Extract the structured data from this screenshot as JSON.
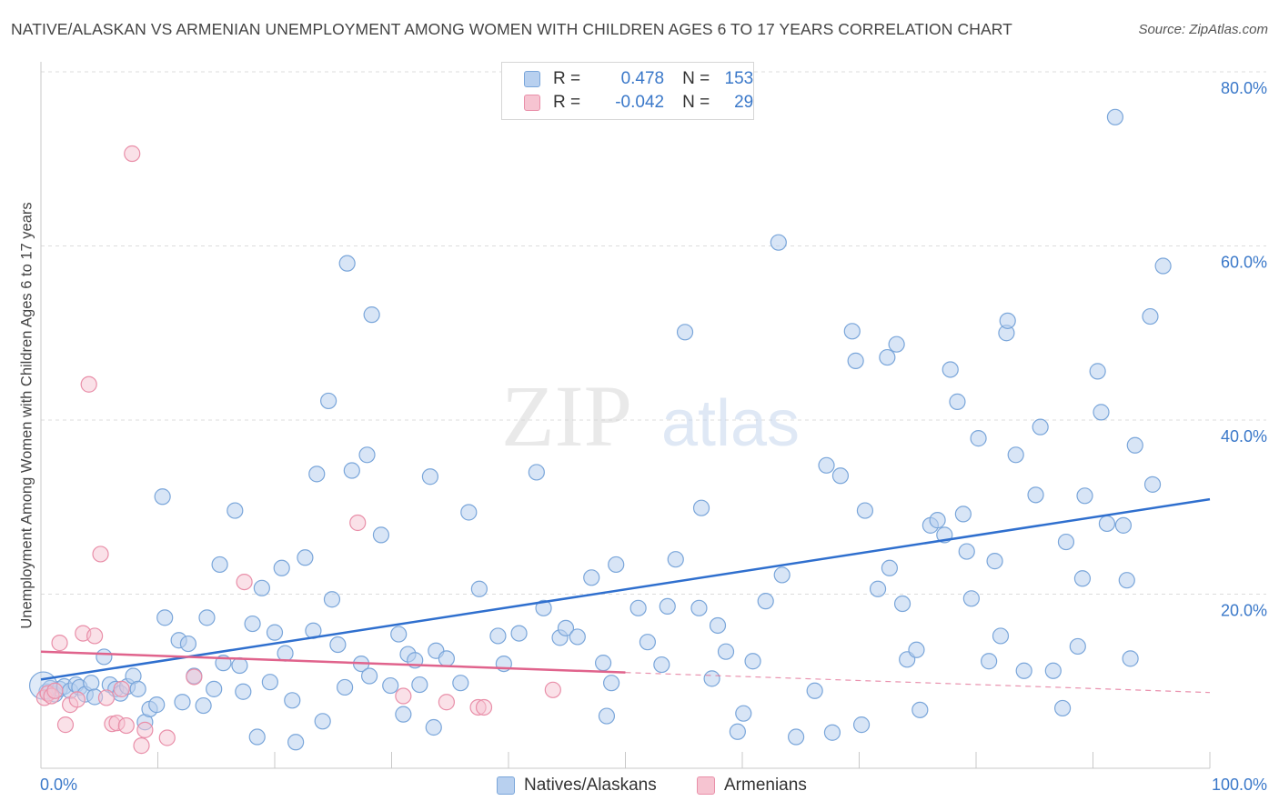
{
  "title": "NATIVE/ALASKAN VS ARMENIAN UNEMPLOYMENT AMONG WOMEN WITH CHILDREN AGES 6 TO 17 YEARS CORRELATION CHART",
  "source": "Source: ZipAtlas.com",
  "watermark": {
    "zip": "ZIP",
    "atlas": "atlas"
  },
  "legend": {
    "rows": [
      {
        "r_label": "R =",
        "r_value": "0.478",
        "n_label": "N =",
        "n_value": "153"
      },
      {
        "r_label": "R =",
        "r_value": "-0.042",
        "n_label": "N =",
        "n_value": "29"
      }
    ]
  },
  "colors": {
    "natives_fill": "#b8d0ef",
    "natives_stroke": "#7aa6da",
    "natives_line": "#2f6fce",
    "armenians_fill": "#f6c4d1",
    "armenians_stroke": "#e98fa9",
    "armenians_line": "#e0638c",
    "axis_text": "#3a78c9",
    "grid": "#dcdcdc"
  },
  "chart_data": {
    "type": "scatter",
    "title": "NATIVE/ALASKAN VS ARMENIAN UNEMPLOYMENT AMONG WOMEN WITH CHILDREN AGES 6 TO 17 YEARS CORRELATION CHART",
    "xlabel": "",
    "ylabel": "Unemployment Among Women with Children Ages 6 to 17 years",
    "xlim": [
      0,
      100
    ],
    "ylim": [
      0,
      80
    ],
    "x_tick_labels": [
      "0.0%",
      "100.0%"
    ],
    "y_ticks": [
      20,
      40,
      60,
      80
    ],
    "y_tick_labels": [
      "20.0%",
      "40.0%",
      "60.0%",
      "80.0%"
    ],
    "series": [
      {
        "name": "Natives/Alaskans",
        "r": 0.478,
        "n": 153,
        "trend": {
          "x": [
            0,
            100
          ],
          "y": [
            10.2,
            30.9
          ]
        },
        "points": [
          [
            0.5,
            8.8
          ],
          [
            0.8,
            9.2
          ],
          [
            1.2,
            8.5
          ],
          [
            1.6,
            9.1
          ],
          [
            2.0,
            9.4
          ],
          [
            2.5,
            8.9
          ],
          [
            3.0,
            9.6
          ],
          [
            3.3,
            9.3
          ],
          [
            3.8,
            8.5
          ],
          [
            4.3,
            9.8
          ],
          [
            4.6,
            8.2
          ],
          [
            5.4,
            12.8
          ],
          [
            5.9,
            9.6
          ],
          [
            6.4,
            9.1
          ],
          [
            6.8,
            8.6
          ],
          [
            7.4,
            9.4
          ],
          [
            7.9,
            10.6
          ],
          [
            8.3,
            9.1
          ],
          [
            8.9,
            5.3
          ],
          [
            9.3,
            6.8
          ],
          [
            9.9,
            7.3
          ],
          [
            10.4,
            31.2
          ],
          [
            10.6,
            17.3
          ],
          [
            11.8,
            14.7
          ],
          [
            12.1,
            7.6
          ],
          [
            12.6,
            14.3
          ],
          [
            13.1,
            10.6
          ],
          [
            13.9,
            7.2
          ],
          [
            14.2,
            17.3
          ],
          [
            14.8,
            9.1
          ],
          [
            15.3,
            23.4
          ],
          [
            15.6,
            12.1
          ],
          [
            16.6,
            29.6
          ],
          [
            17.0,
            11.8
          ],
          [
            17.3,
            8.8
          ],
          [
            18.1,
            16.6
          ],
          [
            18.5,
            3.6
          ],
          [
            18.9,
            20.7
          ],
          [
            19.6,
            9.9
          ],
          [
            20.0,
            15.6
          ],
          [
            20.6,
            23.0
          ],
          [
            20.9,
            13.2
          ],
          [
            21.5,
            7.8
          ],
          [
            21.8,
            3.0
          ],
          [
            22.6,
            24.2
          ],
          [
            23.3,
            15.8
          ],
          [
            23.6,
            33.8
          ],
          [
            24.1,
            5.4
          ],
          [
            24.6,
            42.2
          ],
          [
            24.9,
            19.4
          ],
          [
            25.4,
            14.2
          ],
          [
            26.0,
            9.3
          ],
          [
            26.2,
            58.0
          ],
          [
            26.6,
            34.2
          ],
          [
            27.4,
            12.0
          ],
          [
            27.9,
            36.0
          ],
          [
            28.1,
            10.6
          ],
          [
            28.3,
            52.1
          ],
          [
            29.1,
            26.8
          ],
          [
            29.9,
            9.5
          ],
          [
            30.6,
            15.4
          ],
          [
            31.0,
            6.2
          ],
          [
            31.4,
            13.1
          ],
          [
            32.0,
            12.4
          ],
          [
            32.4,
            9.6
          ],
          [
            33.3,
            33.5
          ],
          [
            33.6,
            4.7
          ],
          [
            33.8,
            13.5
          ],
          [
            34.7,
            12.6
          ],
          [
            35.9,
            9.8
          ],
          [
            36.6,
            29.4
          ],
          [
            37.5,
            20.6
          ],
          [
            39.1,
            15.2
          ],
          [
            39.6,
            12.0
          ],
          [
            40.9,
            15.5
          ],
          [
            42.4,
            34.0
          ],
          [
            43.0,
            18.4
          ],
          [
            44.4,
            15.0
          ],
          [
            44.9,
            16.1
          ],
          [
            45.9,
            15.1
          ],
          [
            47.1,
            21.9
          ],
          [
            48.1,
            12.1
          ],
          [
            48.4,
            6.0
          ],
          [
            48.8,
            9.8
          ],
          [
            49.2,
            23.4
          ],
          [
            51.1,
            18.4
          ],
          [
            51.9,
            14.5
          ],
          [
            53.1,
            11.9
          ],
          [
            53.6,
            18.6
          ],
          [
            54.3,
            24.0
          ],
          [
            55.1,
            50.1
          ],
          [
            56.3,
            18.4
          ],
          [
            56.5,
            29.9
          ],
          [
            57.4,
            10.3
          ],
          [
            57.9,
            16.4
          ],
          [
            58.6,
            13.4
          ],
          [
            59.6,
            4.2
          ],
          [
            60.1,
            6.3
          ],
          [
            60.9,
            12.3
          ],
          [
            62.0,
            19.2
          ],
          [
            63.1,
            60.4
          ],
          [
            63.4,
            22.2
          ],
          [
            64.6,
            3.6
          ],
          [
            66.2,
            8.9
          ],
          [
            67.2,
            34.8
          ],
          [
            67.7,
            4.1
          ],
          [
            68.4,
            33.6
          ],
          [
            69.4,
            50.2
          ],
          [
            69.7,
            46.8
          ],
          [
            70.2,
            5.0
          ],
          [
            70.5,
            29.6
          ],
          [
            71.6,
            20.6
          ],
          [
            72.4,
            47.2
          ],
          [
            72.6,
            23.0
          ],
          [
            73.2,
            48.7
          ],
          [
            73.7,
            18.9
          ],
          [
            74.1,
            12.5
          ],
          [
            74.9,
            13.6
          ],
          [
            75.2,
            6.7
          ],
          [
            76.1,
            27.9
          ],
          [
            76.7,
            28.5
          ],
          [
            77.3,
            26.8
          ],
          [
            77.8,
            45.8
          ],
          [
            78.4,
            42.1
          ],
          [
            78.9,
            29.2
          ],
          [
            79.2,
            24.9
          ],
          [
            79.6,
            19.5
          ],
          [
            80.2,
            37.9
          ],
          [
            81.1,
            12.3
          ],
          [
            81.6,
            23.8
          ],
          [
            82.1,
            15.2
          ],
          [
            82.6,
            50.0
          ],
          [
            82.7,
            51.4
          ],
          [
            83.4,
            36.0
          ],
          [
            84.1,
            11.2
          ],
          [
            85.1,
            31.4
          ],
          [
            85.5,
            39.2
          ],
          [
            86.6,
            11.2
          ],
          [
            87.4,
            6.9
          ],
          [
            87.7,
            26.0
          ],
          [
            88.7,
            14.0
          ],
          [
            89.1,
            21.8
          ],
          [
            89.3,
            31.3
          ],
          [
            90.4,
            45.6
          ],
          [
            90.7,
            40.9
          ],
          [
            91.2,
            28.1
          ],
          [
            91.9,
            74.8
          ],
          [
            92.6,
            27.9
          ],
          [
            92.9,
            21.6
          ],
          [
            93.2,
            12.6
          ],
          [
            93.6,
            37.1
          ],
          [
            94.9,
            51.9
          ],
          [
            95.1,
            32.6
          ],
          [
            96.0,
            57.7
          ]
        ]
      },
      {
        "name": "Armenians",
        "r": -0.042,
        "n": 29,
        "trend": {
          "x": [
            0,
            50
          ],
          "y": [
            13.4,
            11.0
          ]
        },
        "trend_extended": {
          "x": [
            50,
            100
          ],
          "y": [
            11.0,
            8.7
          ]
        },
        "points": [
          [
            0.3,
            8.1
          ],
          [
            0.6,
            8.6
          ],
          [
            0.9,
            8.3
          ],
          [
            1.2,
            8.9
          ],
          [
            1.6,
            14.4
          ],
          [
            2.1,
            5.0
          ],
          [
            2.5,
            7.3
          ],
          [
            3.1,
            7.9
          ],
          [
            3.6,
            15.5
          ],
          [
            4.1,
            44.1
          ],
          [
            4.6,
            15.2
          ],
          [
            5.1,
            24.6
          ],
          [
            5.6,
            8.1
          ],
          [
            6.1,
            5.1
          ],
          [
            6.5,
            5.2
          ],
          [
            6.9,
            9.1
          ],
          [
            7.3,
            4.9
          ],
          [
            7.8,
            70.6
          ],
          [
            8.6,
            2.6
          ],
          [
            8.9,
            4.4
          ],
          [
            10.8,
            3.5
          ],
          [
            13.1,
            10.5
          ],
          [
            17.4,
            21.4
          ],
          [
            27.1,
            28.2
          ],
          [
            31.0,
            8.3
          ],
          [
            34.7,
            7.6
          ],
          [
            37.4,
            7.0
          ],
          [
            37.9,
            7.0
          ],
          [
            43.8,
            9.0
          ]
        ]
      }
    ]
  }
}
